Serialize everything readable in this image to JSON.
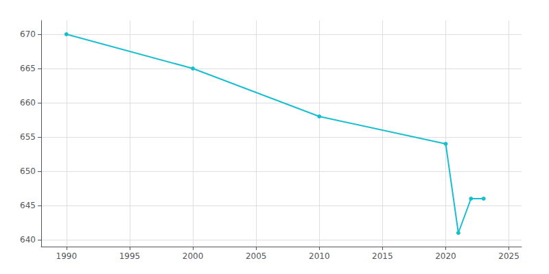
{
  "chart_data": {
    "type": "line",
    "x": [
      1990,
      2000,
      2010,
      2020,
      2021,
      2022,
      2023
    ],
    "values": [
      670,
      665,
      658,
      654,
      641,
      646,
      646
    ],
    "color": "#17becf",
    "marker": "circle",
    "xlim": [
      1988,
      2026
    ],
    "ylim": [
      639,
      672
    ],
    "xticks": [
      1990,
      1995,
      2000,
      2005,
      2010,
      2015,
      2020,
      2025
    ],
    "yticks": [
      640,
      645,
      650,
      655,
      660,
      665,
      670
    ],
    "grid": true
  }
}
